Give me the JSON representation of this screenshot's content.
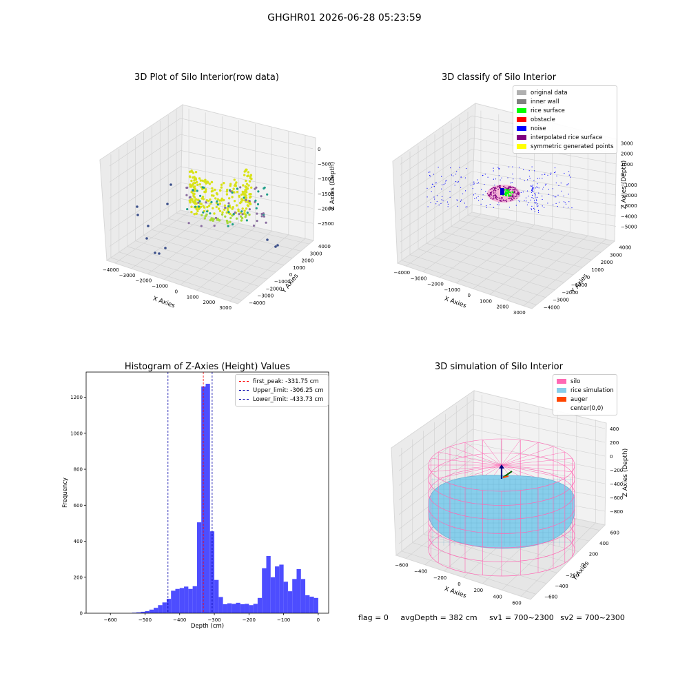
{
  "suptitle": "GHGHR01 2026-06-28 05:23:59",
  "status": {
    "flag": "flag = 0",
    "avg_depth": "avgDepth = 382 cm",
    "sv1": "sv1 = 700~2300",
    "sv2": "sv2 = 700~2300"
  },
  "colors": {
    "histogram_bar": "#4d4dff",
    "peak_line": "#ff0000",
    "limit_line": "#0000aa",
    "silo_wire": "#ff69b4",
    "rice": "#87ceeb",
    "auger": "#ff4500"
  },
  "chart_data": [
    {
      "type": "scatter",
      "projection": "3d",
      "title": "3D Plot of Silo Interior(row data)",
      "xlabel": "X Axies",
      "ylabel": "Y Axies",
      "zlabel": "Z Axies (Depth)",
      "x_ticks": [
        "−4000",
        "−3000",
        "−2000",
        "−1000",
        "0",
        "1000",
        "2000",
        "3000"
      ],
      "y_ticks": [
        "−4000",
        "−3000",
        "−2000",
        "−1000",
        "0",
        "1000",
        "2000",
        "3000",
        "4000"
      ],
      "z_ticks": [
        "−2500",
        "−2000",
        "−1500",
        "−1000",
        "−500",
        "0"
      ],
      "xlim": [
        -4000,
        3500
      ],
      "ylim": [
        -4000,
        4000
      ],
      "zlim": [
        -2700,
        0
      ],
      "colormap": "viridis by depth"
    },
    {
      "type": "scatter",
      "projection": "3d",
      "title": "3D classify of Silo Interior",
      "xlabel": "X Axies",
      "ylabel": "Y Axies",
      "zlabel": "Z Axies (Depth)",
      "x_ticks": [
        "−4000",
        "−3000",
        "−2000",
        "−1000",
        "0",
        "1000",
        "2000",
        "3000"
      ],
      "y_ticks": [
        "−4000",
        "−3000",
        "−2000",
        "−1000",
        "0",
        "1000",
        "2000",
        "3000",
        "4000"
      ],
      "z_ticks": [
        "−5000",
        "−4000",
        "−3000",
        "−2000",
        "−1000",
        "0",
        "1000",
        "2000",
        "3000"
      ],
      "xlim": [
        -4000,
        3500
      ],
      "ylim": [
        -4000,
        4000
      ],
      "zlim": [
        -5000,
        3000
      ],
      "legend": {
        "placement": "top-right",
        "entries": [
          {
            "label": "original data",
            "color": "#b0b0b0"
          },
          {
            "label": "inner wall",
            "color": "#808080"
          },
          {
            "label": "rice surface",
            "color": "#00ff00"
          },
          {
            "label": "obstacle",
            "color": "#ff0000"
          },
          {
            "label": "noise",
            "color": "#0000ff"
          },
          {
            "label": "interpolated rice surface",
            "color": "#800080"
          },
          {
            "label": "symmetric generated points",
            "color": "#ffff00"
          }
        ]
      }
    },
    {
      "type": "bar",
      "title": "Histogram of Z-Axies (Height) Values",
      "xlabel": "Depth (cm)",
      "ylabel": "Frequency",
      "xlim": [
        -670,
        30
      ],
      "ylim": [
        0,
        1340
      ],
      "x_ticks": [
        -600,
        -500,
        -400,
        -300,
        -200,
        -100,
        0
      ],
      "x_tick_labels": [
        "−600",
        "−500",
        "−400",
        "−300",
        "−200",
        "−100",
        "0"
      ],
      "y_ticks": [
        0,
        200,
        400,
        600,
        800,
        1000,
        1200
      ],
      "y_tick_labels": [
        "0",
        "200",
        "400",
        "600",
        "800",
        "1000",
        "1200"
      ],
      "bin_width": 12.5,
      "bins": [
        {
          "x0": -537.5,
          "count": 3
        },
        {
          "x0": -525,
          "count": 5
        },
        {
          "x0": -512.5,
          "count": 8
        },
        {
          "x0": -500,
          "count": 12
        },
        {
          "x0": -487.5,
          "count": 20
        },
        {
          "x0": -475,
          "count": 30
        },
        {
          "x0": -462.5,
          "count": 45
        },
        {
          "x0": -450,
          "count": 60
        },
        {
          "x0": -437.5,
          "count": 80
        },
        {
          "x0": -425,
          "count": 125
        },
        {
          "x0": -412.5,
          "count": 135
        },
        {
          "x0": -400,
          "count": 140
        },
        {
          "x0": -387.5,
          "count": 148
        },
        {
          "x0": -375,
          "count": 135
        },
        {
          "x0": -362.5,
          "count": 150
        },
        {
          "x0": -350,
          "count": 505
        },
        {
          "x0": -337.5,
          "count": 1260
        },
        {
          "x0": -325,
          "count": 1275
        },
        {
          "x0": -312.5,
          "count": 455
        },
        {
          "x0": -300,
          "count": 185
        },
        {
          "x0": -287.5,
          "count": 90
        },
        {
          "x0": -275,
          "count": 50
        },
        {
          "x0": -262.5,
          "count": 55
        },
        {
          "x0": -250,
          "count": 52
        },
        {
          "x0": -237.5,
          "count": 58
        },
        {
          "x0": -225,
          "count": 50
        },
        {
          "x0": -212.5,
          "count": 52
        },
        {
          "x0": -200,
          "count": 45
        },
        {
          "x0": -187.5,
          "count": 52
        },
        {
          "x0": -175,
          "count": 85
        },
        {
          "x0": -162.5,
          "count": 250
        },
        {
          "x0": -150,
          "count": 318
        },
        {
          "x0": -137.5,
          "count": 200
        },
        {
          "x0": -125,
          "count": 260
        },
        {
          "x0": -112.5,
          "count": 270
        },
        {
          "x0": -100,
          "count": 175
        },
        {
          "x0": -87.5,
          "count": 122
        },
        {
          "x0": -75,
          "count": 190
        },
        {
          "x0": -62.5,
          "count": 245
        },
        {
          "x0": -50,
          "count": 190
        },
        {
          "x0": -37.5,
          "count": 100
        },
        {
          "x0": -25,
          "count": 92
        },
        {
          "x0": -12.5,
          "count": 85
        }
      ],
      "vlines": [
        {
          "x": -331.75,
          "color": "#ff0000",
          "label": "first_peak: -331.75 cm"
        },
        {
          "x": -306.25,
          "color": "#0000aa",
          "label": "Upper_limit: -306.25 cm"
        },
        {
          "x": -433.73,
          "color": "#0000aa",
          "label": "Lower_limit: -433.73 cm"
        }
      ],
      "legend_placement": "top-right"
    },
    {
      "type": "surface",
      "projection": "3d",
      "title": "3D simulation of Silo Interior",
      "xlabel": "X Axies",
      "ylabel": "Y Axies",
      "zlabel": "Z Axies (Depth)",
      "x_ticks": [
        "−600",
        "−400",
        "−200",
        "0",
        "200",
        "400",
        "600"
      ],
      "y_ticks": [
        "−600",
        "−400",
        "−200",
        "0",
        "200",
        "400",
        "600"
      ],
      "z_ticks": [
        "−800",
        "−600",
        "−400",
        "−200",
        "0",
        "200",
        "400"
      ],
      "xlim": [
        -700,
        700
      ],
      "ylim": [
        -700,
        700
      ],
      "zlim": [
        -900,
        500
      ],
      "legend": {
        "placement": "top-right",
        "entries": [
          {
            "label": "silo",
            "color": "#ff69b4"
          },
          {
            "label": "rice simulation",
            "color": "#87ceeb"
          },
          {
            "label": "auger",
            "color": "#ff4500"
          },
          {
            "label": "center(0,0)",
            "color": ""
          }
        ]
      }
    }
  ]
}
